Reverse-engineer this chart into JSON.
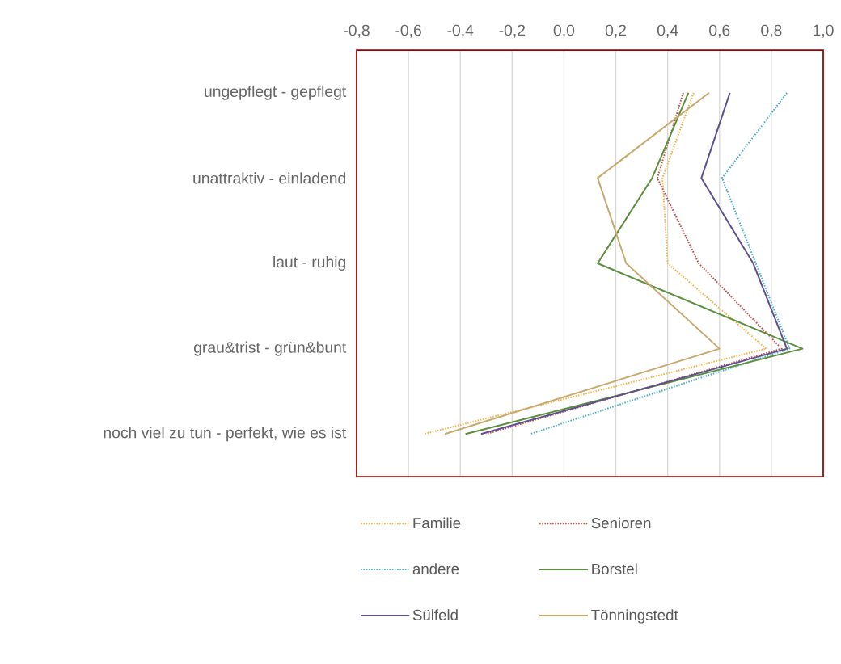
{
  "chart_data": {
    "type": "line",
    "orientation": "horizontal",
    "categories": [
      "ungepflegt - gepflegt",
      "unattraktiv - einladend",
      "laut - ruhig",
      "grau&trist - grün&bunt",
      "noch viel zu tun - perfekt, wie es ist"
    ],
    "series": [
      {
        "name": "Familie",
        "color": "#f2b54a",
        "line_style": "dotted",
        "values": [
          0.5,
          0.38,
          0.4,
          0.78,
          -0.54
        ]
      },
      {
        "name": "Senioren",
        "color": "#c0504d",
        "line_style": "dotted",
        "values": [
          0.46,
          0.36,
          0.52,
          0.84,
          -0.3
        ]
      },
      {
        "name": "andere",
        "color": "#4bacc6",
        "line_style": "dotted",
        "values": [
          0.86,
          0.61,
          0.74,
          0.87,
          -0.13
        ]
      },
      {
        "name": "Borstel",
        "color": "#5a8f3c",
        "line_style": "solid",
        "values": [
          0.48,
          0.34,
          0.13,
          0.92,
          -0.38
        ]
      },
      {
        "name": "Sülfeld",
        "color": "#5f4f8f",
        "line_style": "solid",
        "values": [
          0.64,
          0.53,
          0.73,
          0.86,
          -0.32
        ]
      },
      {
        "name": "Tönningstedt",
        "color": "#c9a86e",
        "line_style": "solid",
        "values": [
          0.56,
          0.13,
          0.24,
          0.6,
          -0.46
        ]
      }
    ],
    "xlim": [
      -0.8,
      1.0
    ],
    "xticks": [
      {
        "value": -0.8,
        "label": "-0,8"
      },
      {
        "value": -0.6,
        "label": "-0,6"
      },
      {
        "value": -0.4,
        "label": "-0,4"
      },
      {
        "value": -0.2,
        "label": "-0,2"
      },
      {
        "value": 0.0,
        "label": "0,0"
      },
      {
        "value": 0.2,
        "label": "0,2"
      },
      {
        "value": 0.4,
        "label": "0,4"
      },
      {
        "value": 0.6,
        "label": "0,6"
      },
      {
        "value": 0.8,
        "label": "0,8"
      },
      {
        "value": 1.0,
        "label": "1,0"
      }
    ],
    "grid": "x",
    "legend": "bottom",
    "marker": "none"
  }
}
